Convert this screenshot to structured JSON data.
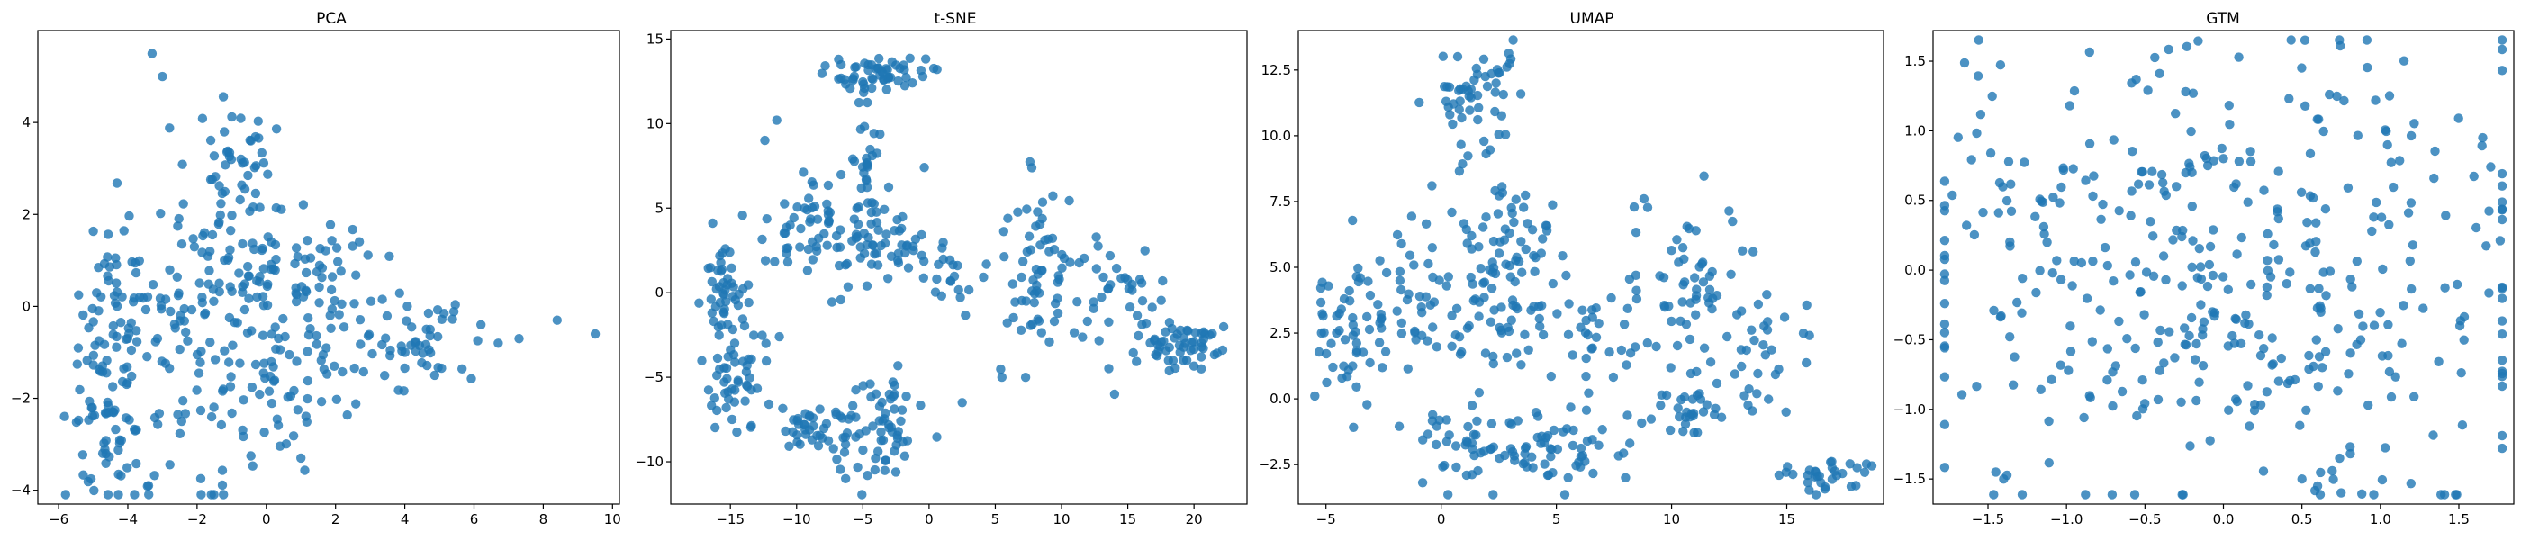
{
  "figure": {
    "background": "#ffffff",
    "point_color": "#1f77b4"
  },
  "chart_data": [
    {
      "type": "scatter",
      "title": "PCA",
      "xlim": [
        -6.6,
        10.2
      ],
      "ylim": [
        -4.3,
        6.0
      ],
      "xticks": [
        -6,
        -4,
        -2,
        0,
        2,
        4,
        6,
        8,
        10
      ],
      "yticks": [
        -4,
        -2,
        0,
        2,
        4
      ],
      "xtick_labels": [
        "−6",
        "−4",
        "−2",
        "0",
        "2",
        "4",
        "6",
        "8",
        "10"
      ],
      "ytick_labels": [
        "−4",
        "−2",
        "0",
        "2",
        "4"
      ],
      "clusters": [
        {
          "cx": -4.6,
          "cy": -1.0,
          "sx": 0.6,
          "sy": 1.5,
          "n": 90
        },
        {
          "cx": -2.2,
          "cy": -0.5,
          "sx": 1.1,
          "sy": 1.6,
          "n": 90
        },
        {
          "cx": -0.8,
          "cy": 0.8,
          "sx": 0.9,
          "sy": 1.1,
          "n": 70
        },
        {
          "cx": 1.8,
          "cy": 0.0,
          "sx": 1.1,
          "sy": 1.0,
          "n": 80
        },
        {
          "cx": 4.6,
          "cy": -0.8,
          "sx": 0.7,
          "sy": 0.4,
          "n": 40
        },
        {
          "cx": -1.0,
          "cy": 3.3,
          "sx": 0.6,
          "sy": 0.8,
          "n": 30
        },
        {
          "cx": 0.5,
          "cy": -2.0,
          "sx": 1.3,
          "sy": 0.6,
          "n": 40
        },
        {
          "cx": -4.0,
          "cy": -3.2,
          "sx": 0.6,
          "sy": 0.5,
          "n": 20
        }
      ],
      "extra_points": [
        [
          -3.3,
          5.5
        ],
        [
          -3.0,
          5.0
        ],
        [
          9.5,
          -0.6
        ],
        [
          8.4,
          -0.3
        ],
        [
          7.3,
          -0.7
        ],
        [
          6.2,
          -0.4
        ],
        [
          6.7,
          -0.8
        ],
        [
          1.0,
          -3.3
        ],
        [
          -3.4,
          -3.9
        ]
      ]
    },
    {
      "type": "scatter",
      "title": "t-SNE",
      "xlim": [
        -19.5,
        24.0
      ],
      "ylim": [
        -12.5,
        15.5
      ],
      "xticks": [
        -15,
        -10,
        -5,
        0,
        5,
        10,
        15,
        20
      ],
      "yticks": [
        -10,
        -5,
        0,
        5,
        10,
        15
      ],
      "xtick_labels": [
        "−15",
        "−10",
        "−5",
        "0",
        "5",
        "10",
        "15",
        "20"
      ],
      "ytick_labels": [
        "−10",
        "−5",
        "0",
        "5",
        "10",
        "15"
      ],
      "clusters": [
        {
          "cx": -3.8,
          "cy": 13.0,
          "sx": 1.8,
          "sy": 0.5,
          "n": 55
        },
        {
          "cx": -4.6,
          "cy": 8.5,
          "sx": 0.4,
          "sy": 1.2,
          "n": 20
        },
        {
          "cx": -15.5,
          "cy": 0.0,
          "sx": 0.8,
          "sy": 1.3,
          "n": 45
        },
        {
          "cx": -14.5,
          "cy": -5.0,
          "sx": 1.3,
          "sy": 1.8,
          "n": 50
        },
        {
          "cx": -9.0,
          "cy": 4.0,
          "sx": 2.0,
          "sy": 1.5,
          "n": 55
        },
        {
          "cx": -4.0,
          "cy": 3.5,
          "sx": 1.8,
          "sy": 1.6,
          "n": 60
        },
        {
          "cx": -8.5,
          "cy": -8.0,
          "sx": 1.5,
          "sy": 1.0,
          "n": 40
        },
        {
          "cx": -3.5,
          "cy": -8.0,
          "sx": 1.3,
          "sy": 1.6,
          "n": 60
        },
        {
          "cx": 1.5,
          "cy": 1.2,
          "sx": 1.3,
          "sy": 1.0,
          "n": 20
        },
        {
          "cx": 8.5,
          "cy": 1.0,
          "sx": 1.5,
          "sy": 2.6,
          "n": 60
        },
        {
          "cx": 14.0,
          "cy": 0.0,
          "sx": 2.2,
          "sy": 2.0,
          "n": 40
        },
        {
          "cx": 19.0,
          "cy": -3.0,
          "sx": 1.6,
          "sy": 0.8,
          "n": 55
        }
      ],
      "extra_points": [
        [
          -11.5,
          10.2
        ],
        [
          -12.4,
          9.0
        ],
        [
          -6.3,
          -11.0
        ],
        [
          0.6,
          13.2
        ],
        [
          2.5,
          -6.5
        ],
        [
          5.5,
          -5.0
        ],
        [
          14.0,
          -6.0
        ]
      ]
    },
    {
      "type": "scatter",
      "title": "UMAP",
      "xlim": [
        -6.2,
        19.2
      ],
      "ylim": [
        -4.0,
        14.0
      ],
      "xticks": [
        -5,
        0,
        5,
        10,
        15
      ],
      "yticks": [
        -2.5,
        0.0,
        2.5,
        5.0,
        7.5,
        10.0,
        12.5
      ],
      "xtick_labels": [
        "−5",
        "0",
        "5",
        "10",
        "15"
      ],
      "ytick_labels": [
        "−2.5",
        "0.0",
        "2.5",
        "5.0",
        "7.5",
        "10.0",
        "12.5"
      ],
      "clusters": [
        {
          "cx": 1.2,
          "cy": 11.2,
          "sx": 0.8,
          "sy": 1.2,
          "n": 40
        },
        {
          "cx": 2.5,
          "cy": 12.3,
          "sx": 0.8,
          "sy": 0.6,
          "n": 15
        },
        {
          "cx": -3.8,
          "cy": 2.6,
          "sx": 1.1,
          "sy": 1.4,
          "n": 55
        },
        {
          "cx": -1.5,
          "cy": 3.8,
          "sx": 1.0,
          "sy": 1.4,
          "n": 35
        },
        {
          "cx": 1.5,
          "cy": 4.5,
          "sx": 1.1,
          "sy": 1.8,
          "n": 50
        },
        {
          "cx": 4.0,
          "cy": 3.8,
          "sx": 1.2,
          "sy": 1.6,
          "n": 50
        },
        {
          "cx": 3.0,
          "cy": 7.2,
          "sx": 0.7,
          "sy": 0.6,
          "n": 15
        },
        {
          "cx": 1.5,
          "cy": -1.8,
          "sx": 1.2,
          "sy": 0.9,
          "n": 45
        },
        {
          "cx": 5.0,
          "cy": -2.0,
          "sx": 1.5,
          "sy": 0.9,
          "n": 50
        },
        {
          "cx": 7.0,
          "cy": 2.0,
          "sx": 0.8,
          "sy": 1.0,
          "n": 20
        },
        {
          "cx": 10.5,
          "cy": 4.2,
          "sx": 1.5,
          "sy": 1.6,
          "n": 55
        },
        {
          "cx": 10.5,
          "cy": -0.5,
          "sx": 1.4,
          "sy": 0.9,
          "n": 40
        },
        {
          "cx": 14.0,
          "cy": 2.5,
          "sx": 1.2,
          "sy": 1.5,
          "n": 30
        },
        {
          "cx": 16.8,
          "cy": -2.8,
          "sx": 1.2,
          "sy": 0.4,
          "n": 30
        }
      ],
      "extra_points": [
        [
          18.0,
          -3.3
        ],
        [
          8.0,
          -3.0
        ],
        [
          8.8,
          7.6
        ],
        [
          -0.4,
          8.1
        ]
      ]
    },
    {
      "type": "scatter",
      "title": "GTM",
      "xlim": [
        -1.85,
        1.85
      ],
      "ylim": [
        -1.68,
        1.72
      ],
      "xticks": [
        -1.5,
        -1.0,
        -0.5,
        0.0,
        0.5,
        1.0,
        1.5
      ],
      "yticks": [
        -1.5,
        -1.0,
        -0.5,
        0.0,
        0.5,
        1.0,
        1.5
      ],
      "xtick_labels": [
        "−1.5",
        "−1.0",
        "−0.5",
        "0.0",
        "0.5",
        "1.0",
        "1.5"
      ],
      "ytick_labels": [
        "−1.5",
        "−1.0",
        "−0.5",
        "0.0",
        "0.5",
        "1.0",
        "1.5"
      ],
      "clusters": [
        {
          "cx": 0.0,
          "cy": 0.0,
          "sx": 1.0,
          "sy": 0.85,
          "n": 420
        }
      ],
      "extra_points": [
        [
          -0.2,
          0.7
        ],
        [
          -0.1,
          0.75
        ],
        [
          0.0,
          0.8
        ],
        [
          0.1,
          0.78
        ],
        [
          -0.3,
          0.6
        ],
        [
          -1.45,
          -1.45
        ],
        [
          -1.4,
          -1.5
        ],
        [
          0.6,
          -1.55
        ],
        [
          0.75,
          -1.6
        ],
        [
          0.5,
          -1.5
        ]
      ]
    }
  ]
}
